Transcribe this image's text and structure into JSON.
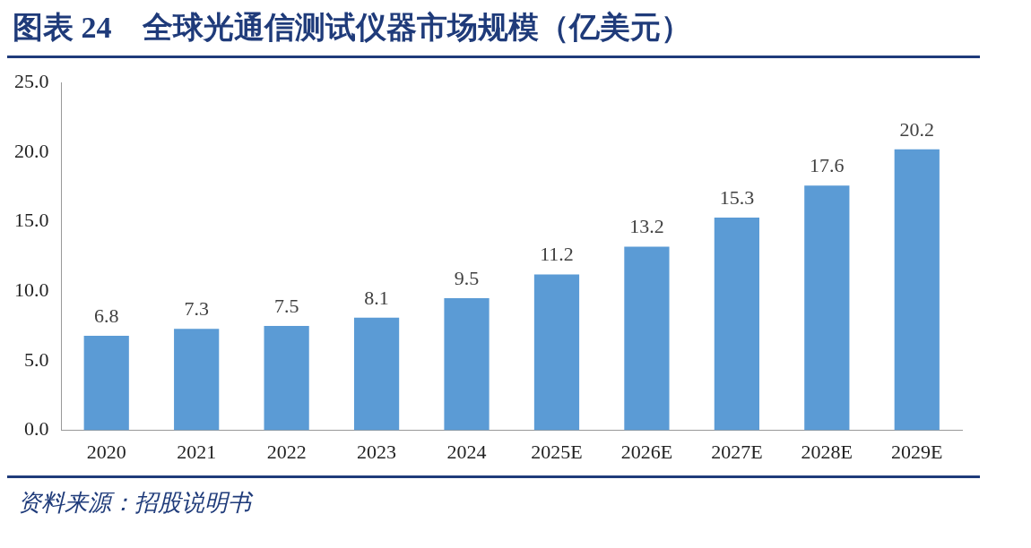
{
  "chart_data": {
    "type": "bar",
    "title": "图表 24　全球光通信测试仪器市场规模（亿美元）",
    "categories": [
      "2020",
      "2021",
      "2022",
      "2023",
      "2024",
      "2025E",
      "2026E",
      "2027E",
      "2028E",
      "2029E"
    ],
    "values": [
      6.8,
      7.3,
      7.5,
      8.1,
      9.5,
      11.2,
      13.2,
      15.3,
      17.6,
      20.2
    ],
    "color": "#5b9bd5",
    "ylim": [
      0,
      25
    ],
    "yticks": [
      {
        "value": 0,
        "label": "0.0"
      },
      {
        "value": 5,
        "label": "5.0"
      },
      {
        "value": 10,
        "label": "10.0"
      },
      {
        "value": 15,
        "label": "15.0"
      },
      {
        "value": 20,
        "label": "20.0"
      },
      {
        "value": 25,
        "label": "25.0"
      }
    ],
    "grid": false,
    "legend": false,
    "data_labels": true,
    "annotations": [
      "资料来源：招股说明书"
    ]
  }
}
